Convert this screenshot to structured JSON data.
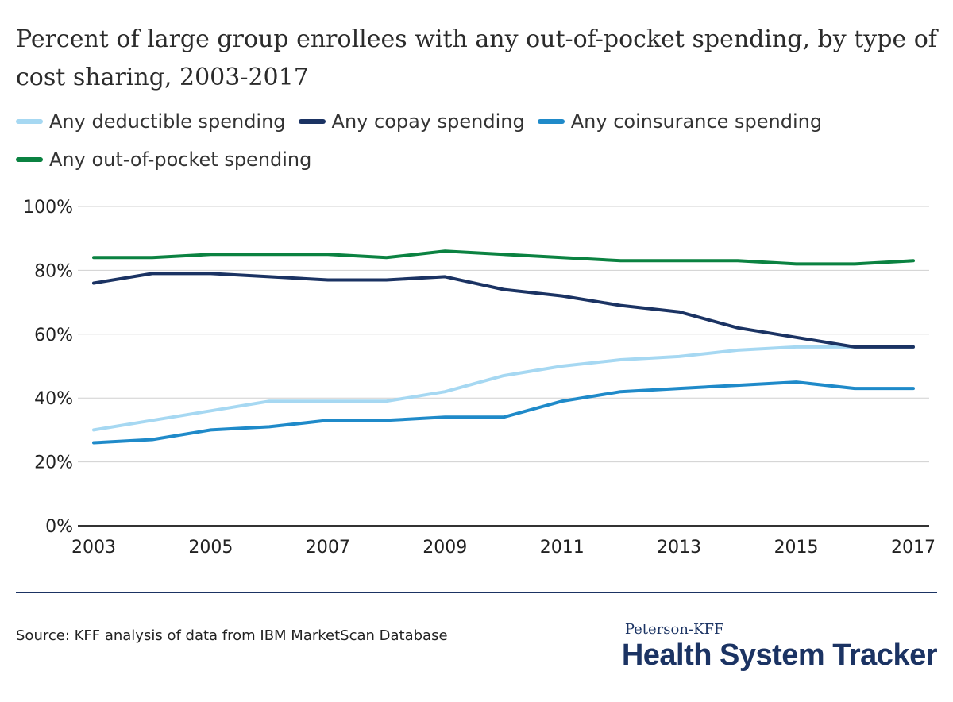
{
  "title": "Percent of large group enrollees with any out-of-pocket spending, by type of cost sharing, 2003-2017",
  "colors": {
    "deductible": "#a6d8f2",
    "copay": "#1b3363",
    "coinsurance": "#1f8ac9",
    "oop": "#0b8241",
    "grid": "#d0d0d0",
    "axis": "#333333",
    "divider": "#1b3363",
    "brand": "#1b3363"
  },
  "chart_data": {
    "type": "line",
    "title": "Percent of large group enrollees with any out-of-pocket spending, by type of cost sharing, 2003-2017",
    "xlabel": "",
    "ylabel": "",
    "x": [
      2003,
      2004,
      2005,
      2006,
      2007,
      2008,
      2009,
      2010,
      2011,
      2012,
      2013,
      2014,
      2015,
      2016,
      2017
    ],
    "x_ticks": [
      "2003",
      "2005",
      "2007",
      "2009",
      "2011",
      "2013",
      "2015",
      "2017"
    ],
    "y_ticks": [
      "0%",
      "20%",
      "40%",
      "60%",
      "80%",
      "100%"
    ],
    "ylim": [
      0,
      100
    ],
    "grid": true,
    "legend_position": "top-left",
    "series": [
      {
        "key": "deductible",
        "name": "Any deductible spending",
        "values": [
          30,
          33,
          36,
          39,
          39,
          39,
          42,
          47,
          50,
          52,
          53,
          55,
          56,
          56,
          56
        ]
      },
      {
        "key": "copay",
        "name": "Any copay spending",
        "values": [
          76,
          79,
          79,
          78,
          77,
          77,
          78,
          74,
          72,
          69,
          67,
          62,
          59,
          56,
          56
        ]
      },
      {
        "key": "coinsurance",
        "name": "Any coinsurance spending",
        "values": [
          26,
          27,
          30,
          31,
          33,
          33,
          34,
          34,
          39,
          42,
          43,
          44,
          45,
          43,
          43
        ]
      },
      {
        "key": "oop",
        "name": "Any out-of-pocket spending",
        "values": [
          84,
          84,
          85,
          85,
          85,
          84,
          86,
          85,
          84,
          83,
          83,
          83,
          82,
          82,
          83
        ]
      }
    ]
  },
  "source": "Source: KFF analysis of data from IBM MarketScan Database",
  "brand": {
    "top": "Peterson-KFF",
    "main": "Health System Tracker"
  }
}
